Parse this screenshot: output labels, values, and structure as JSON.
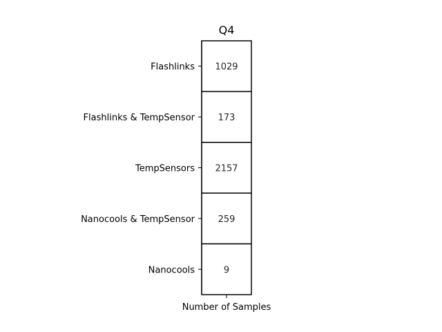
{
  "chart_data": {
    "type": "heatmap",
    "title": "Q4",
    "xlabel": "",
    "ylabel": "",
    "x_categories": [
      "Number of Samples"
    ],
    "y_categories": [
      "Flashlinks",
      "Flashlinks & TempSensor",
      "TempSensors",
      "Nanocools & TempSensor",
      "Nanocools"
    ],
    "values": [
      [
        1029
      ],
      [
        173
      ],
      [
        2157
      ],
      [
        259
      ],
      [
        9
      ]
    ],
    "cell_color": "#ffffff",
    "cell_border_color": "#000000",
    "text_color": "#262626"
  }
}
